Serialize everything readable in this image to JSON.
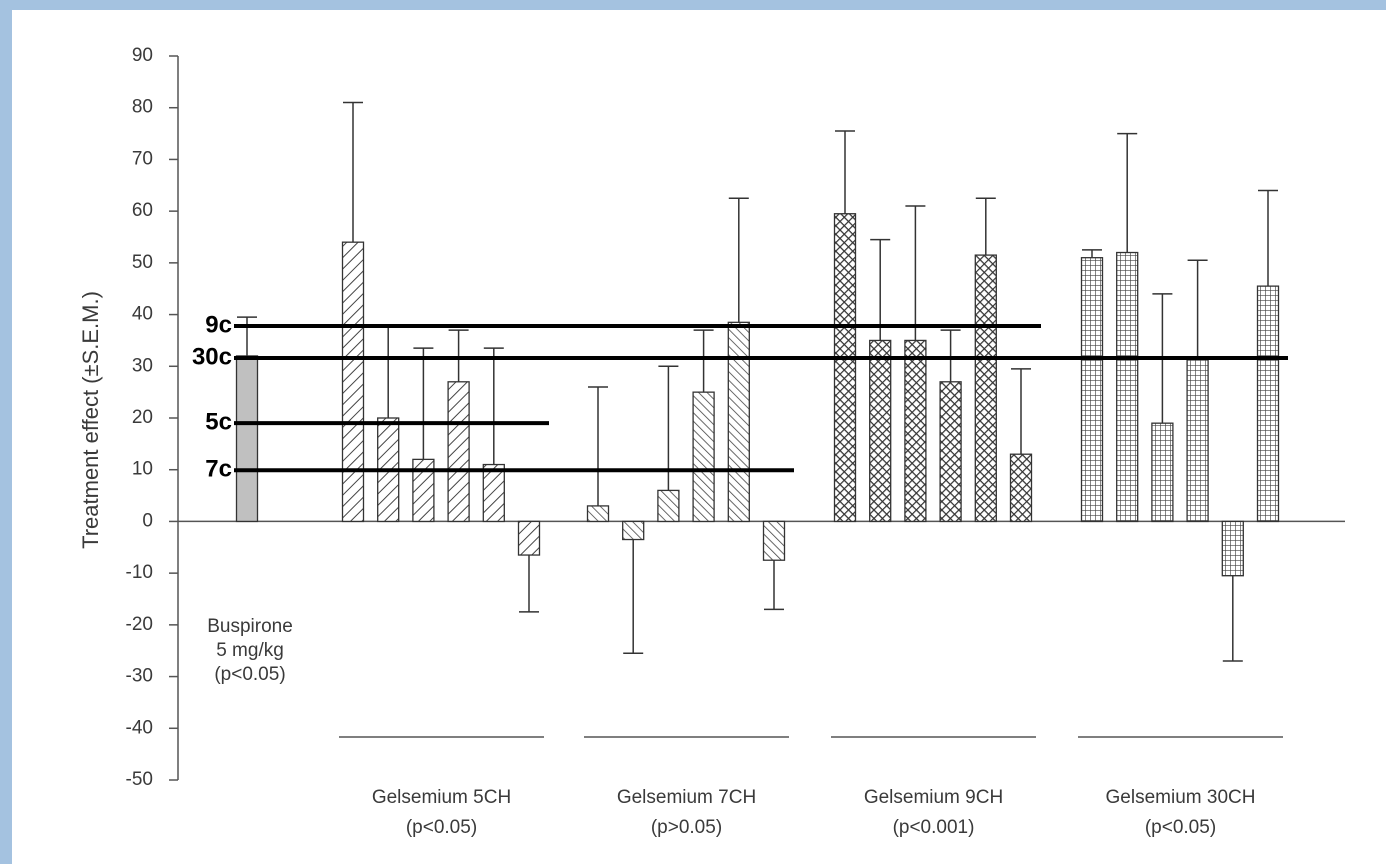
{
  "chart_data": {
    "type": "bar",
    "y_label": "Treatment effect (±S.E.M.)",
    "ylim": [
      -50,
      90
    ],
    "yticks": [
      -50,
      -40,
      -30,
      -20,
      -10,
      0,
      10,
      20,
      30,
      40,
      50,
      60,
      70,
      80,
      90
    ],
    "series": [
      {
        "label": [
          "Buspirone",
          "5 mg/kg",
          "(p<0.05)"
        ],
        "pattern": "solid",
        "color": "#c0c0c0",
        "values": [
          32
        ],
        "errors": [
          7.5
        ]
      },
      {
        "label": [
          "Gelsemium 5CH",
          "(p<0.05)"
        ],
        "pattern": "hatch-right",
        "color": "#444444",
        "values": [
          54,
          20,
          12,
          27,
          11,
          -6.5
        ],
        "errors": [
          27,
          18,
          21.5,
          10,
          22.5,
          11
        ]
      },
      {
        "label": [
          "Gelsemium 7CH",
          "(p>0.05)"
        ],
        "pattern": "hatch-left",
        "color": "#444444",
        "values": [
          3,
          -3.5,
          6,
          25,
          38.5,
          -7.5
        ],
        "errors": [
          23,
          22,
          24,
          12,
          24,
          9.5
        ]
      },
      {
        "label": [
          "Gelsemium 9CH",
          "(p<0.001)"
        ],
        "pattern": "crosshatch",
        "color": "#333333",
        "values": [
          59.5,
          35,
          35,
          27,
          51.5,
          13
        ],
        "errors": [
          16,
          19.5,
          26,
          10,
          11,
          16.5
        ]
      },
      {
        "label": [
          "Gelsemium 30CH",
          "(p<0.05)"
        ],
        "pattern": "grid",
        "color": "#444444",
        "values": [
          51,
          52,
          19,
          31.5,
          -10.5,
          45.5
        ],
        "errors": [
          1.5,
          23,
          25,
          19,
          16.5,
          18.5
        ]
      }
    ],
    "reference_lines": [
      {
        "label": "9c",
        "value": 37.8
      },
      {
        "label": "30c",
        "value": 31.6
      },
      {
        "label": "5c",
        "value": 19
      },
      {
        "label": "7c",
        "value": 9.9
      }
    ]
  }
}
